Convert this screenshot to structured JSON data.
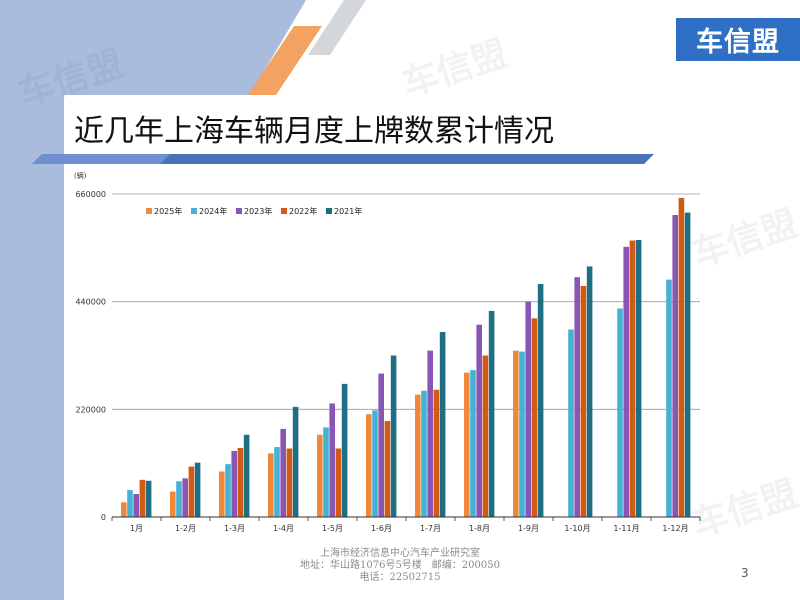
{
  "logo_text": "车信盟",
  "watermark_text": "车信盟",
  "slide_title": "近几年上海车辆月度上牌数累计情况",
  "footer": {
    "line1": "上海市经济信息中心汽车产业研究室",
    "line2": "地址：华山路1076号5号楼　邮编：200050",
    "line3": "电话：22502715"
  },
  "page_number": "3",
  "colors": {
    "left_bar": "#a9bcdd",
    "logo_bg": "#2f6fc6",
    "s2025": "#f0883a",
    "s2024": "#45b2d5",
    "s2023": "#8a56b5",
    "s2022": "#d35a14",
    "s2021": "#1e6f83"
  },
  "chart_data": {
    "type": "bar",
    "title": "",
    "ylabel": "(辆)",
    "xlabel": "",
    "ylim": [
      0,
      660000
    ],
    "yticks": [
      0,
      220000,
      440000,
      660000
    ],
    "ytick_labels": [
      "0",
      "220000",
      "440000",
      "660000"
    ],
    "grid": true,
    "legend_position": "top-left",
    "categories": [
      "1月",
      "1-2月",
      "1-3月",
      "1-4月",
      "1-5月",
      "1-6月",
      "1-7月",
      "1-8月",
      "1-9月",
      "1-10月",
      "1-11月",
      "1-12月"
    ],
    "series": [
      {
        "name": "2025年",
        "color": "#f0883a",
        "values": [
          30000,
          52000,
          93000,
          130000,
          168000,
          210000,
          250000,
          295000,
          340000,
          null,
          null,
          null
        ]
      },
      {
        "name": "2024年",
        "color": "#45b2d5",
        "values": [
          55000,
          73000,
          108000,
          143000,
          183000,
          218000,
          258000,
          300000,
          338000,
          383000,
          426000,
          485000
        ]
      },
      {
        "name": "2023年",
        "color": "#8a56b5",
        "values": [
          47000,
          79000,
          135000,
          180000,
          232000,
          293000,
          340000,
          393000,
          440000,
          490000,
          552000,
          617000
        ]
      },
      {
        "name": "2022年",
        "color": "#d35a14",
        "values": [
          76000,
          103000,
          141000,
          140000,
          140000,
          196000,
          260000,
          330000,
          406000,
          472000,
          565000,
          652000
        ]
      },
      {
        "name": "2021年",
        "color": "#1e6f83",
        "values": [
          74000,
          111000,
          168000,
          225000,
          272000,
          330000,
          378000,
          421000,
          476000,
          512000,
          566000,
          622000
        ]
      }
    ]
  }
}
